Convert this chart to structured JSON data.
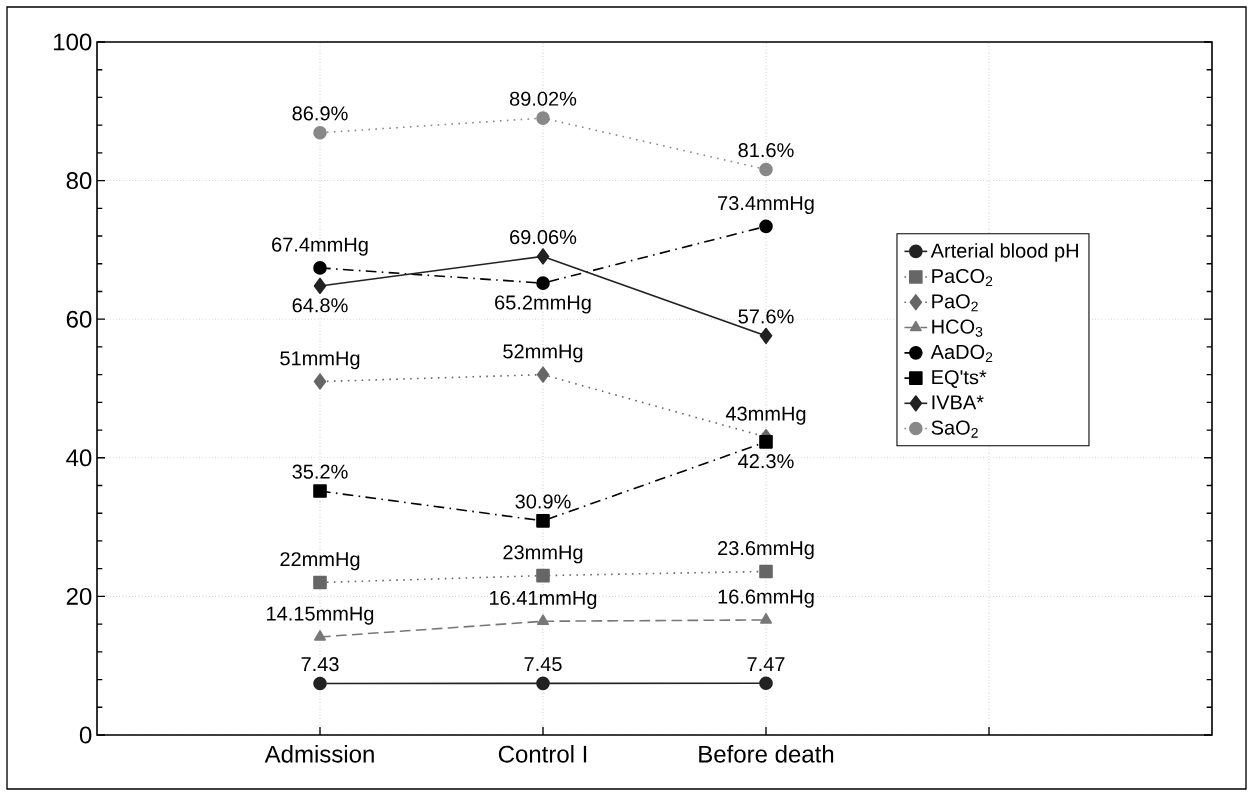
{
  "chart_data": {
    "type": "line",
    "categories": [
      "Admission",
      "Control I",
      "Before death",
      null
    ],
    "ylim": [
      0,
      100
    ],
    "yticks": [
      0,
      20,
      40,
      60,
      80,
      100
    ],
    "grid": true,
    "legend": "right",
    "series": [
      {
        "name": "Arterial blood pH",
        "color": "#222222",
        "marker": "circle",
        "line_style": "solid",
        "values": [
          7.43,
          7.45,
          7.47,
          null
        ],
        "value_labels": [
          "7.43",
          "7.45",
          "7.47",
          null
        ]
      },
      {
        "name": "PaCO$_{2}$",
        "color": "#666666",
        "marker": "square",
        "line_style": "dotted",
        "values": [
          22,
          23,
          23.6,
          null
        ],
        "value_labels": [
          "22mmHg",
          "23mmHg",
          "23.6mmHg",
          null
        ]
      },
      {
        "name": "PaO$_{2}$",
        "color": "#666666",
        "marker": "diamond",
        "line_style": "dotted",
        "values": [
          51,
          52,
          43,
          null
        ],
        "value_labels": [
          "51mmHg",
          "52mmHg",
          "43mmHg",
          null
        ]
      },
      {
        "name": "HCO$_{3}$",
        "color": "#777777",
        "marker": "triangle",
        "line_style": "dashed",
        "values": [
          14.15,
          16.41,
          16.6,
          null
        ],
        "value_labels": [
          "14.15mmHg",
          "16.41mmHg",
          "16.6mmHg",
          null
        ]
      },
      {
        "name": "AaDO$_{2}$",
        "color": "#000000",
        "marker": "circle",
        "line_style": "dashdot",
        "values": [
          67.4,
          65.2,
          73.4,
          null
        ],
        "value_labels": [
          "67.4mmHg",
          "65.2mmHg",
          "73.4mmHg",
          null
        ]
      },
      {
        "name": "EQ'ts*",
        "color": "#000000",
        "marker": "square",
        "line_style": "dashdot",
        "values": [
          35.2,
          30.9,
          42.3,
          null
        ],
        "value_labels": [
          "35.2%",
          "30.9%",
          "42.3%",
          null
        ]
      },
      {
        "name": "IVBA*",
        "color": "#222222",
        "marker": "diamond",
        "line_style": "solid",
        "values": [
          64.8,
          69.06,
          57.6,
          null
        ],
        "value_labels": [
          "64.8%",
          "69.06%",
          "57.6%",
          null
        ]
      },
      {
        "name": "SaO$_{2}$",
        "color": "#888888",
        "marker": "circle",
        "line_style": "dotted",
        "values": [
          86.9,
          89.02,
          81.6,
          null
        ],
        "value_labels": [
          "86.9%",
          "89.02%",
          "81.6%",
          null
        ]
      }
    ]
  }
}
